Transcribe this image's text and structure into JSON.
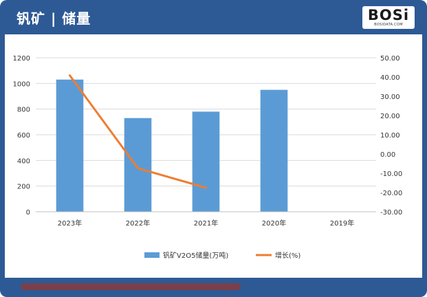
{
  "header": {
    "title": "钒矿 | 储量",
    "logo_text": "BOSi",
    "logo_sub": "BOSIDATA.COM"
  },
  "colors": {
    "frame": "#2d5a95",
    "bar": "#5b9bd5",
    "line": "#ed7d31"
  },
  "chart_data": {
    "type": "bar",
    "categories": [
      "2023年",
      "2022年",
      "2021年",
      "2020年",
      "2019年"
    ],
    "series": [
      {
        "name": "钒矿V2O5储量(万吨)",
        "type": "bar",
        "axis": "left",
        "values": [
          1030,
          730,
          780,
          950,
          null
        ]
      },
      {
        "name": "增长(%)",
        "type": "line",
        "axis": "right",
        "values": [
          40.8,
          -7.4,
          -17.5,
          null,
          null
        ]
      }
    ],
    "y_left": {
      "min": 0,
      "max": 1200,
      "ticks": [
        "0",
        "200",
        "400",
        "600",
        "800",
        "1000",
        "1200"
      ]
    },
    "y_right": {
      "min": -30,
      "max": 50,
      "ticks": [
        "-30.00",
        "-20.00",
        "-10.00",
        "0.00",
        "10.00",
        "20.00",
        "30.00",
        "40.00",
        "50.00"
      ]
    },
    "grid": true,
    "legend_position": "bottom"
  }
}
